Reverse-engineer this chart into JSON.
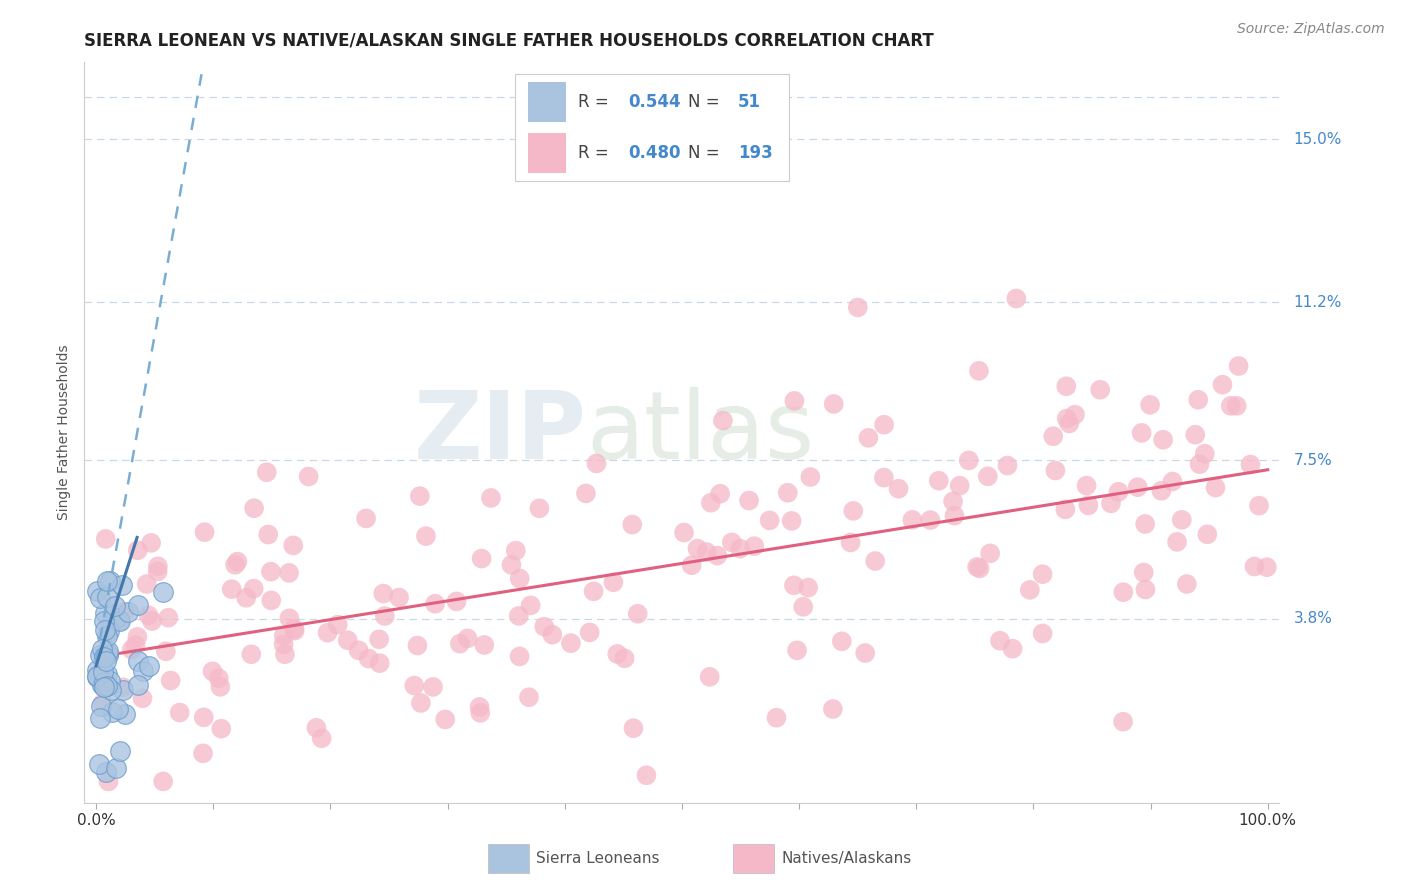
{
  "title": "SIERRA LEONEAN VS NATIVE/ALASKAN SINGLE FATHER HOUSEHOLDS CORRELATION CHART",
  "source_text": "Source: ZipAtlas.com",
  "ylabel": "Single Father Households",
  "watermark_zip": "ZIP",
  "watermark_atlas": "atlas",
  "xlim": [
    0.0,
    100.0
  ],
  "ylim": [
    0.0,
    0.16
  ],
  "yticks": [
    0.038,
    0.075,
    0.112,
    0.15
  ],
  "ytick_labels": [
    "3.8%",
    "7.5%",
    "11.2%",
    "15.0%"
  ],
  "xtick_labels": [
    "0.0%",
    "100.0%"
  ],
  "grid_color": "#c8d8e8",
  "background_color": "#ffffff",
  "series1": {
    "label": "Sierra Leoneans",
    "color": "#aac4e0",
    "border_color": "#6699cc",
    "R": 0.544,
    "N": 51,
    "trend_color": "#7aadd4"
  },
  "series2": {
    "label": "Natives/Alaskans",
    "color": "#f5b8c8",
    "R": 0.48,
    "N": 193,
    "trend_color": "#e06080"
  },
  "legend_R_color": "#4488cc",
  "title_fontsize": 12,
  "axis_label_fontsize": 10,
  "tick_fontsize": 11,
  "legend_fontsize": 12,
  "source_fontsize": 10
}
